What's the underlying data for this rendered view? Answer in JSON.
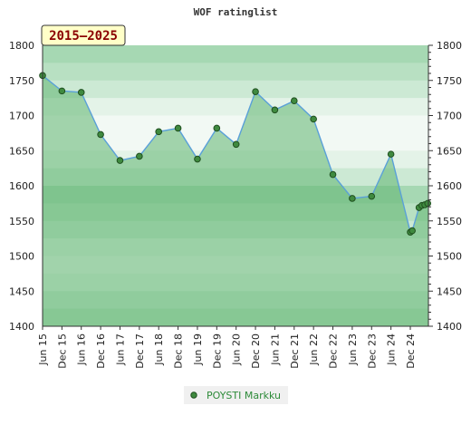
{
  "chart_data": {
    "type": "line",
    "title": "WOF ratinglist",
    "badge": "2015–2025",
    "ylim": [
      1400,
      1800
    ],
    "yticks": [
      1400,
      1450,
      1500,
      1550,
      1600,
      1650,
      1700,
      1750,
      1800
    ],
    "ytick_labels": [
      "1400",
      "1450",
      "1500",
      "1550",
      "1600",
      "1650",
      "1700",
      "1750",
      "1800"
    ],
    "xtick_labels": [
      "Jun 15",
      "Dec 15",
      "Jun 16",
      "Dec 16",
      "Jun 17",
      "Dec 17",
      "Jun 18",
      "Dec 18",
      "Jun 19",
      "Dec 19",
      "Jun 20",
      "Dec 20",
      "Jun 21",
      "Dec 21",
      "Jun 22",
      "Dec 22",
      "Jun 23",
      "Dec 23",
      "Jun 24",
      "Dec 24"
    ],
    "legend_position": "bottom",
    "colors": {
      "line": "#5aa0d8",
      "marker": "#3f8a3f",
      "fill": "#7cc08a"
    },
    "series": [
      {
        "name": "POYSTI Markku",
        "x": [
          0,
          1,
          2,
          3,
          4,
          5,
          6,
          7,
          8,
          9,
          10,
          11,
          12,
          13,
          14,
          15,
          16,
          17,
          18,
          19,
          19.1,
          19.45,
          19.6,
          19.75,
          19.9
        ],
        "values": [
          1757,
          1735,
          1733,
          1673,
          1636,
          1642,
          1677,
          1682,
          1638,
          1682,
          1659,
          1734,
          1708,
          1721,
          1695,
          1616,
          1582,
          1585,
          1645,
          1534,
          1536,
          1569,
          1572,
          1573,
          1575
        ]
      }
    ]
  }
}
